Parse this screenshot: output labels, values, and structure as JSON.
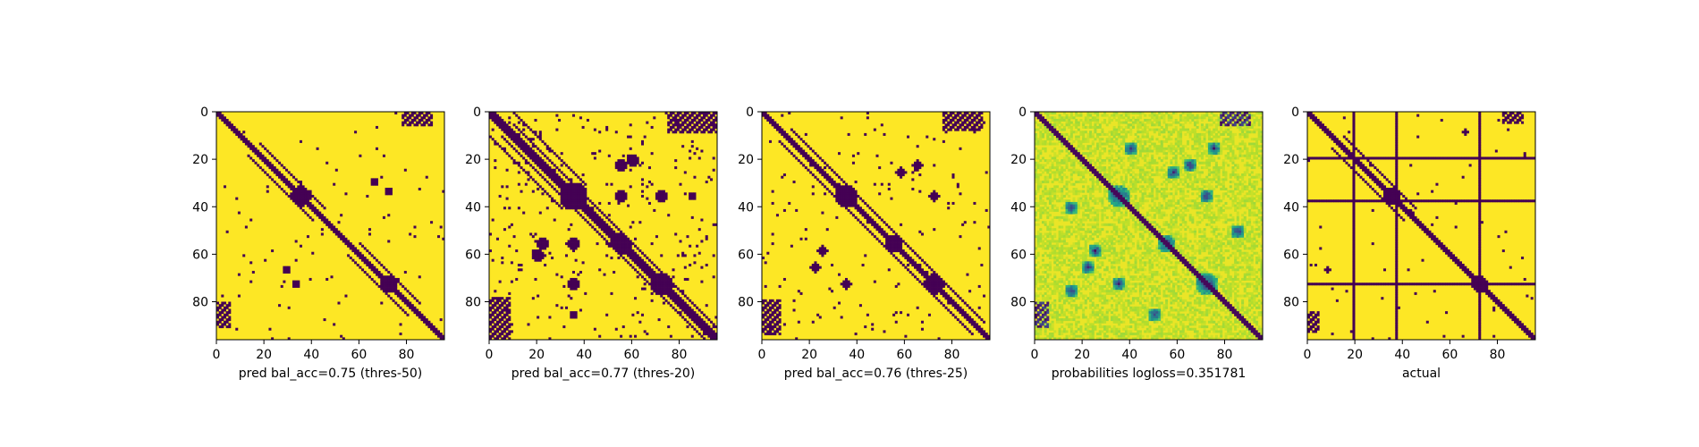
{
  "colors": {
    "low": "#440154",
    "high": "#fde725",
    "viridis": [
      "#440154",
      "#482878",
      "#3e4989",
      "#31688e",
      "#26828e",
      "#1f9e89",
      "#35b779",
      "#6ece58",
      "#b5de2b",
      "#fde725"
    ],
    "axis": "#000000",
    "background": "#ffffff"
  },
  "chart_data": [
    {
      "type": "heatmap",
      "colormap": "binary-viridis",
      "xlabel": "pred bal_acc=0.75 (thres-50)",
      "matrix_size": 96,
      "xticks": [
        0,
        20,
        40,
        60,
        80
      ],
      "yticks": [
        0,
        20,
        40,
        60,
        80
      ],
      "pattern": {
        "diagonal_width": 1.6,
        "parallel_diagonals": [
          {
            "offset": -5,
            "from": 18,
            "to": 45
          },
          {
            "offset": 5,
            "from": 55,
            "to": 80
          }
        ],
        "blobs": [
          [
            35,
            35,
            5
          ],
          [
            72,
            72,
            4
          ],
          [
            29,
            66,
            2
          ],
          [
            72,
            33,
            2
          ],
          [
            67,
            15,
            1.2
          ]
        ],
        "corner_blocks": [
          [
            0,
            78,
            5,
            90
          ],
          [
            80,
            0,
            90,
            5
          ]
        ],
        "density": 0.01
      }
    },
    {
      "type": "heatmap",
      "colormap": "binary-viridis",
      "xlabel": "pred bal_acc=0.77 (thres-20)",
      "matrix_size": 96,
      "xticks": [
        0,
        20,
        40,
        60,
        80
      ],
      "yticks": [
        0,
        20,
        40,
        60,
        80
      ],
      "pattern": {
        "diagonal_width": 2.0,
        "parallel_diagonals": [
          {
            "offset": -5,
            "from": 10,
            "to": 60
          },
          {
            "offset": 5,
            "from": 40,
            "to": 90
          },
          {
            "offset": -10,
            "from": 10,
            "to": 40
          }
        ],
        "blobs": [
          [
            35,
            35,
            7
          ],
          [
            55,
            55,
            5
          ],
          [
            72,
            72,
            6
          ],
          [
            22,
            55,
            3
          ],
          [
            35,
            72,
            3
          ],
          [
            72,
            35,
            3
          ],
          [
            60,
            20,
            3
          ],
          [
            55,
            35,
            3
          ],
          [
            85,
            35,
            2
          ]
        ],
        "corner_blocks": [
          [
            0,
            75,
            8,
            95
          ],
          [
            78,
            0,
            95,
            8
          ]
        ],
        "density": 0.035
      }
    },
    {
      "type": "heatmap",
      "colormap": "binary-viridis",
      "xlabel": "pred bal_acc=0.76 (thres-25)",
      "matrix_size": 96,
      "xticks": [
        0,
        20,
        40,
        60,
        80
      ],
      "yticks": [
        0,
        20,
        40,
        60,
        80
      ],
      "pattern": {
        "diagonal_width": 1.9,
        "parallel_diagonals": [
          {
            "offset": -5,
            "from": 12,
            "to": 55
          },
          {
            "offset": 5,
            "from": 45,
            "to": 88
          }
        ],
        "blobs": [
          [
            35,
            35,
            6
          ],
          [
            55,
            55,
            4
          ],
          [
            72,
            72,
            5
          ],
          [
            25,
            58,
            2.5
          ],
          [
            35,
            72,
            2.5
          ],
          [
            72,
            35,
            2.5
          ],
          [
            65,
            22,
            2.5
          ]
        ],
        "corner_blocks": [
          [
            0,
            76,
            7,
            92
          ],
          [
            79,
            0,
            93,
            7
          ]
        ],
        "density": 0.02
      }
    },
    {
      "type": "heatmap",
      "colormap": "viridis",
      "xlabel": "probabilities logloss=0.351781",
      "matrix_size": 96,
      "xticks": [
        0,
        20,
        40,
        60,
        80
      ],
      "yticks": [
        0,
        20,
        40,
        60,
        80
      ],
      "pattern": {
        "diagonal_width": 1.6,
        "blobs": [
          [
            35,
            35,
            5
          ],
          [
            55,
            55,
            4
          ],
          [
            72,
            72,
            5
          ],
          [
            25,
            58,
            3
          ],
          [
            35,
            72,
            3
          ],
          [
            72,
            35,
            3
          ],
          [
            65,
            22,
            3
          ],
          [
            40,
            15,
            3
          ],
          [
            15,
            40,
            3
          ],
          [
            85,
            50,
            3
          ],
          [
            50,
            85,
            3
          ],
          [
            75,
            15,
            3
          ]
        ],
        "corner_blocks": [
          [
            0,
            78,
            5,
            90
          ],
          [
            80,
            0,
            90,
            5
          ]
        ],
        "density": 0.0
      }
    },
    {
      "type": "heatmap",
      "colormap": "binary-viridis",
      "xlabel": "actual",
      "matrix_size": 96,
      "xticks": [
        0,
        20,
        40,
        60,
        80
      ],
      "yticks": [
        0,
        20,
        40,
        60,
        80
      ],
      "pattern": {
        "diagonal_width": 1.4,
        "parallel_diagonals": [
          {
            "offset": -5,
            "from": 15,
            "to": 45
          }
        ],
        "blobs": [
          [
            35,
            35,
            4
          ],
          [
            72,
            72,
            4
          ],
          [
            66,
            8,
            1.5
          ],
          [
            62,
            48,
            1.2
          ]
        ],
        "lines": [
          19,
          37,
          72
        ],
        "corner_blocks": [
          [
            0,
            82,
            4,
            90
          ],
          [
            84,
            0,
            92,
            4
          ]
        ],
        "density": 0.008
      }
    }
  ]
}
